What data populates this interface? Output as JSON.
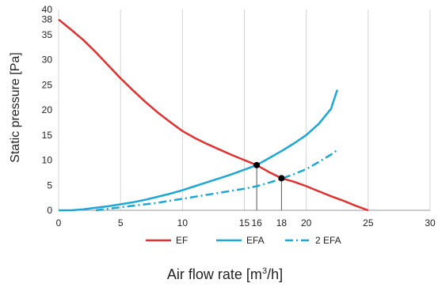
{
  "chart_data": {
    "type": "line",
    "xlabel": "Air flow rate [m3/h]",
    "xlabel_main": "Air flow rate [m",
    "xlabel_sup": "3",
    "xlabel_tail": "/h]",
    "ylabel": "Static pressure  [Pa]",
    "xlim": [
      0,
      30
    ],
    "ylim": [
      0,
      40
    ],
    "xticks": [
      0,
      5,
      10,
      15,
      16,
      18,
      20,
      25,
      30
    ],
    "yticks": [
      0,
      5,
      10,
      15,
      20,
      25,
      30,
      35,
      38,
      40
    ],
    "grid": "vertical",
    "legend_position": "bottom",
    "series": [
      {
        "name": "EF",
        "color": "#e03131",
        "style": "solid",
        "x": [
          0,
          1,
          2,
          3,
          4,
          5,
          6,
          7,
          8,
          9,
          10,
          11,
          12,
          13,
          14,
          15,
          16,
          17,
          18,
          19,
          20,
          21,
          22,
          23,
          24,
          25
        ],
        "y": [
          38,
          36,
          33.9,
          31.5,
          28.9,
          26.3,
          23.9,
          21.6,
          19.5,
          17.6,
          15.8,
          14.4,
          13.2,
          12.1,
          11.0,
          10.0,
          9.0,
          7.6,
          6.4,
          5.7,
          4.8,
          3.8,
          2.8,
          1.9,
          0.9,
          0
        ]
      },
      {
        "name": "EFA",
        "color": "#1ea7d6",
        "style": "solid",
        "x": [
          0,
          1,
          2,
          3,
          4,
          5,
          6,
          7,
          8,
          9,
          10,
          11,
          12,
          13,
          14,
          15,
          16,
          17,
          18,
          19,
          20,
          21,
          22,
          22.5
        ],
        "y": [
          0,
          0,
          0.2,
          0.5,
          0.8,
          1.2,
          1.6,
          2.1,
          2.7,
          3.3,
          4.0,
          4.8,
          5.6,
          6.4,
          7.2,
          8.1,
          9.0,
          10.4,
          11.8,
          13.3,
          15.0,
          17.2,
          20.2,
          24.0
        ]
      },
      {
        "name": "2 EFA",
        "color": "#1ea7d6",
        "style": "dashdot",
        "x": [
          3,
          4,
          5,
          6,
          7,
          8,
          9,
          10,
          11,
          12,
          13,
          14,
          15,
          16,
          17,
          18,
          19,
          20,
          21,
          22,
          22.5
        ],
        "y": [
          0,
          0.3,
          0.6,
          0.9,
          1.2,
          1.5,
          1.9,
          2.3,
          2.7,
          3.1,
          3.5,
          3.9,
          4.3,
          4.8,
          5.5,
          6.3,
          7.2,
          8.2,
          9.6,
          11.1,
          12.0
        ]
      }
    ],
    "markers": [
      {
        "x": 16,
        "y": 9
      },
      {
        "x": 18,
        "y": 6.4
      }
    ]
  }
}
